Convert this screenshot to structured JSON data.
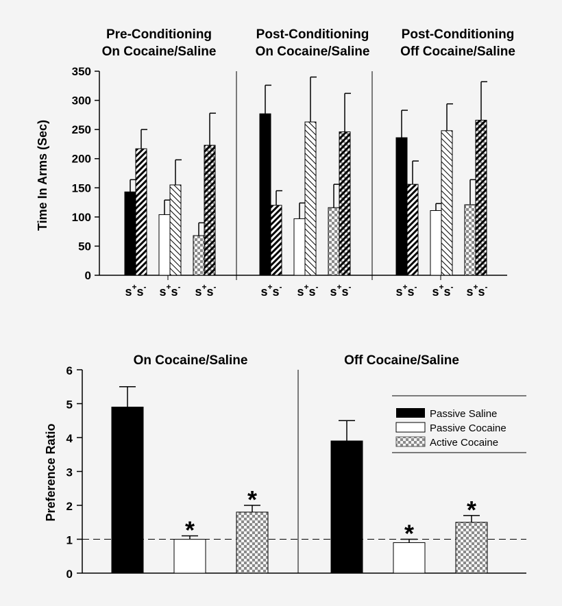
{
  "top_panel": {
    "group_titles": [
      [
        "Pre-Conditioning",
        "On Cocaine/Saline"
      ],
      [
        "Post-Conditioning",
        "On Cocaine/Saline"
      ],
      [
        "Post-Conditioning",
        "Off Cocaine/Saline"
      ]
    ],
    "ylabel": "Time In Arms (Sec)",
    "pair_symbols": [
      [
        "s",
        "+",
        "s",
        "-"
      ],
      [
        "s",
        "+",
        "s",
        "-"
      ],
      [
        "s",
        "+",
        "s",
        "-"
      ]
    ]
  },
  "bottom_panel": {
    "group_titles": [
      "On Cocaine/Saline",
      "Off Cocaine/Saline"
    ],
    "ylabel": "Preference Ratio",
    "significance_mark": "*",
    "reference_line": 1,
    "legend": [
      "Passive Saline",
      "Passive Cocaine",
      "Active Cocaine"
    ]
  },
  "colors": {
    "background": "#f4f4f4",
    "ink": "#000000",
    "white_bar": "#ffffff",
    "dot_bar": "#9a9a9a"
  },
  "chart_data": [
    {
      "type": "bar",
      "ylabel": "Time In Arms (Sec)",
      "ylim": [
        0,
        350
      ],
      "yticks": [
        0,
        50,
        100,
        150,
        200,
        250,
        300,
        350
      ],
      "groups": [
        "Pre-Conditioning On Cocaine/Saline",
        "Post-Conditioning On Cocaine/Saline",
        "Post-Conditioning Off Cocaine/Saline"
      ],
      "categories": [
        "s+",
        "s-"
      ],
      "series": [
        {
          "group": 0,
          "fill": "solid",
          "values": [
            143,
            217
          ],
          "errors": [
            21,
            33
          ]
        },
        {
          "group": 0,
          "fill": "open",
          "values": [
            104,
            155
          ],
          "errors": [
            25,
            43
          ]
        },
        {
          "group": 0,
          "fill": "dots",
          "values": [
            68,
            223
          ],
          "errors": [
            22,
            55
          ]
        },
        {
          "group": 1,
          "fill": "solid",
          "values": [
            277,
            120
          ],
          "errors": [
            49,
            25
          ]
        },
        {
          "group": 1,
          "fill": "open",
          "values": [
            97,
            263
          ],
          "errors": [
            27,
            77
          ]
        },
        {
          "group": 1,
          "fill": "dots",
          "values": [
            116,
            246
          ],
          "errors": [
            40,
            66
          ]
        },
        {
          "group": 2,
          "fill": "solid",
          "values": [
            236,
            156
          ],
          "errors": [
            47,
            40
          ]
        },
        {
          "group": 2,
          "fill": "open",
          "values": [
            111,
            248
          ],
          "errors": [
            12,
            46
          ]
        },
        {
          "group": 2,
          "fill": "dots",
          "values": [
            121,
            266
          ],
          "errors": [
            43,
            66
          ]
        }
      ]
    },
    {
      "type": "bar",
      "ylabel": "Preference Ratio",
      "ylim": [
        0,
        6
      ],
      "yticks": [
        0,
        1,
        2,
        3,
        4,
        5,
        6
      ],
      "groups": [
        "On Cocaine/Saline",
        "Off Cocaine/Saline"
      ],
      "series": [
        {
          "name": "Passive Saline",
          "fill": "solid",
          "values": [
            4.9,
            3.9
          ],
          "errors": [
            0.6,
            0.6
          ],
          "significant": [
            false,
            false
          ]
        },
        {
          "name": "Passive Cocaine",
          "fill": "open",
          "values": [
            1.0,
            0.9
          ],
          "errors": [
            0.1,
            0.1
          ],
          "significant": [
            true,
            true
          ]
        },
        {
          "name": "Active Cocaine",
          "fill": "dots",
          "values": [
            1.8,
            1.5
          ],
          "errors": [
            0.2,
            0.2
          ],
          "significant": [
            true,
            true
          ]
        }
      ],
      "reference_line": 1,
      "legend_position": "right"
    }
  ]
}
